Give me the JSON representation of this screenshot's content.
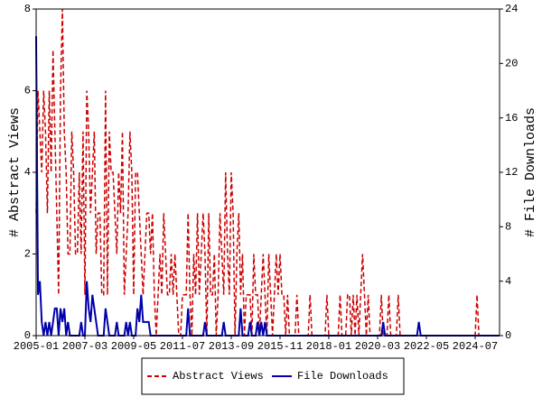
{
  "chart_data": {
    "type": "line",
    "x": [
      "2005-01",
      "2005-02",
      "2005-03",
      "2005-04",
      "2005-05",
      "2005-06",
      "2005-07",
      "2005-08",
      "2005-09",
      "2005-10",
      "2005-11",
      "2005-12",
      "2006-01",
      "2006-02",
      "2006-03",
      "2006-04",
      "2006-05",
      "2006-06",
      "2006-07",
      "2006-08",
      "2006-09",
      "2006-10",
      "2006-11",
      "2006-12",
      "2007-01",
      "2007-02",
      "2007-03",
      "2007-04",
      "2007-05",
      "2007-06",
      "2007-07",
      "2007-08",
      "2007-09",
      "2007-10",
      "2007-11",
      "2007-12",
      "2008-01",
      "2008-02",
      "2008-03",
      "2008-04",
      "2008-05",
      "2008-06",
      "2008-07",
      "2008-08",
      "2008-09",
      "2008-10",
      "2008-11",
      "2008-12",
      "2009-01",
      "2009-02",
      "2009-03",
      "2009-04",
      "2009-05",
      "2009-06",
      "2009-07",
      "2009-08",
      "2009-09",
      "2009-10",
      "2009-11",
      "2009-12",
      "2010-01",
      "2010-02",
      "2010-03",
      "2010-04",
      "2010-05",
      "2010-06",
      "2010-07",
      "2010-08",
      "2010-09",
      "2010-10",
      "2010-11",
      "2010-12",
      "2011-01",
      "2011-02",
      "2011-03",
      "2011-04",
      "2011-05",
      "2011-06",
      "2011-07",
      "2011-08",
      "2011-09",
      "2011-10",
      "2011-11",
      "2011-12",
      "2012-01",
      "2012-02",
      "2012-03",
      "2012-04",
      "2012-05",
      "2012-06",
      "2012-07",
      "2012-08",
      "2012-09",
      "2012-10",
      "2012-11",
      "2012-12",
      "2013-01",
      "2013-02",
      "2013-03",
      "2013-04",
      "2013-05",
      "2013-06",
      "2013-07",
      "2013-08",
      "2013-09",
      "2013-10",
      "2013-11",
      "2013-12",
      "2014-01",
      "2014-02",
      "2014-03",
      "2014-04",
      "2014-05",
      "2014-06",
      "2014-07",
      "2014-08",
      "2014-09",
      "2014-10",
      "2014-11",
      "2014-12",
      "2015-01",
      "2015-02",
      "2015-03",
      "2015-04",
      "2015-05",
      "2015-06",
      "2015-07",
      "2015-08",
      "2015-09",
      "2015-10",
      "2015-11",
      "2015-12",
      "2016-01",
      "2016-02",
      "2016-03",
      "2016-04",
      "2016-05",
      "2016-06",
      "2016-07",
      "2016-08",
      "2016-09",
      "2016-10",
      "2016-11",
      "2016-12",
      "2017-01",
      "2017-02",
      "2017-03",
      "2017-04",
      "2017-05",
      "2017-06",
      "2017-07",
      "2017-08",
      "2017-09",
      "2017-10",
      "2017-11",
      "2017-12",
      "2018-01",
      "2018-02",
      "2018-03",
      "2018-04",
      "2018-05",
      "2018-06",
      "2018-07",
      "2018-08",
      "2018-09",
      "2018-10",
      "2018-11",
      "2018-12",
      "2019-01",
      "2019-02",
      "2019-03",
      "2019-04",
      "2019-05",
      "2019-06",
      "2019-07",
      "2019-08",
      "2019-09",
      "2019-10",
      "2019-11",
      "2019-12",
      "2020-01",
      "2020-02",
      "2020-03",
      "2020-04",
      "2020-05",
      "2020-06",
      "2020-07",
      "2020-08",
      "2020-09",
      "2020-10",
      "2020-11",
      "2020-12",
      "2021-01",
      "2021-02",
      "2021-03",
      "2021-04",
      "2021-05",
      "2021-06",
      "2021-07",
      "2021-08",
      "2021-09",
      "2021-10",
      "2021-11",
      "2021-12",
      "2022-01",
      "2022-02",
      "2022-03",
      "2022-04",
      "2022-05",
      "2022-06",
      "2022-07",
      "2022-08",
      "2022-09",
      "2022-10",
      "2022-11",
      "2022-12",
      "2023-01",
      "2023-02",
      "2023-03",
      "2023-04",
      "2023-05",
      "2023-06",
      "2023-07",
      "2023-08",
      "2023-09",
      "2023-10",
      "2023-11",
      "2023-12",
      "2024-01",
      "2024-02",
      "2024-03",
      "2024-04",
      "2024-05",
      "2024-06",
      "2024-07",
      "2024-08",
      "2024-09",
      "2024-10",
      "2024-11",
      "2024-12",
      "2025-01",
      "2025-02",
      "2025-03",
      "2025-04",
      "2025-05",
      "2025-06",
      "2025-07",
      "2025-08"
    ],
    "xticks": [
      "2005-01",
      "2007-03",
      "2009-05",
      "2011-07",
      "2013-09",
      "2015-11",
      "2018-01",
      "2020-03",
      "2022-05",
      "2024-07"
    ],
    "ylabel": "# Abstract Views",
    "y2label": "# File Downloads",
    "ylim": [
      0,
      8
    ],
    "yticks": [
      0,
      2,
      4,
      6,
      8
    ],
    "y2lim": [
      0,
      24
    ],
    "y2ticks": [
      0,
      4,
      8,
      12,
      16,
      20,
      24
    ],
    "legend": "bottom",
    "series": [
      {
        "name": "Abstract Views",
        "color": "#cc0000",
        "dash": true,
        "values": [
          3,
          6,
          5,
          4,
          6,
          5,
          3,
          6,
          4,
          7,
          5,
          3,
          1,
          6,
          8,
          5,
          4,
          2,
          2,
          5,
          4,
          2,
          2,
          4,
          2,
          5,
          1,
          6,
          5,
          3,
          4,
          5,
          2,
          3,
          3,
          1,
          1,
          6,
          1,
          5,
          4,
          4,
          3,
          2,
          4,
          3,
          5,
          1,
          2,
          3,
          5,
          4,
          1,
          4,
          4,
          3,
          2,
          1,
          2,
          3,
          3,
          2,
          3,
          1,
          0,
          1,
          2,
          1,
          3,
          2,
          1,
          1,
          2,
          1,
          2,
          1,
          0,
          0,
          1,
          1,
          1,
          3,
          1,
          0,
          2,
          1,
          3,
          1,
          2,
          3,
          2,
          0,
          3,
          1,
          1,
          2,
          0,
          1,
          3,
          2,
          1,
          4,
          2,
          1,
          4,
          3,
          0,
          2,
          3,
          1,
          2,
          0,
          1,
          1,
          1,
          0,
          2,
          1,
          1,
          0,
          1,
          2,
          1,
          0,
          2,
          1,
          0,
          1,
          2,
          1,
          2,
          1,
          1,
          0,
          1,
          0,
          0,
          0,
          0,
          1,
          0,
          0,
          0,
          0,
          0,
          0,
          1,
          0,
          0,
          0,
          0,
          0,
          0,
          0,
          0,
          1,
          0,
          0,
          0,
          0,
          0,
          0,
          1,
          0,
          0,
          0,
          1,
          1,
          0,
          1,
          0,
          1,
          0,
          1,
          2,
          1,
          0,
          1,
          0,
          0,
          0,
          0,
          0,
          0,
          1,
          0,
          0,
          0,
          1,
          0,
          0,
          0,
          0,
          1,
          0,
          0,
          0,
          0,
          0,
          0,
          0,
          0,
          0,
          0,
          0,
          0,
          0,
          0,
          0,
          0,
          0,
          0,
          0,
          0,
          0,
          0,
          0,
          0,
          0,
          0,
          0,
          0,
          0,
          0,
          0,
          0,
          0,
          0,
          0,
          0,
          0,
          0,
          0,
          0,
          0,
          1,
          0,
          0,
          0,
          0,
          0,
          0,
          0,
          0,
          0,
          0,
          0,
          0
        ]
      },
      {
        "name": "File Downloads",
        "color": "#0000aa",
        "axis": "y2",
        "values": [
          22,
          3,
          4,
          1,
          0,
          1,
          0,
          1,
          0,
          1,
          2,
          2,
          0,
          2,
          1,
          2,
          0,
          1,
          0,
          0,
          0,
          0,
          0,
          0,
          1,
          0,
          0,
          4,
          2,
          1,
          3,
          2,
          1,
          0,
          0,
          0,
          0,
          2,
          1,
          0,
          0,
          0,
          0,
          1,
          0,
          0,
          0,
          0,
          1,
          0,
          1,
          0,
          0,
          0,
          2,
          1,
          3,
          1,
          1,
          1,
          1,
          0,
          0,
          0,
          0,
          0,
          0,
          0,
          0,
          0,
          0,
          0,
          0,
          0,
          0,
          0,
          0,
          0,
          0,
          0,
          0,
          2,
          0,
          0,
          0,
          0,
          0,
          0,
          0,
          0,
          1,
          0,
          0,
          0,
          0,
          0,
          0,
          0,
          0,
          0,
          1,
          0,
          0,
          0,
          0,
          0,
          0,
          0,
          0,
          2,
          0,
          0,
          0,
          0,
          1,
          0,
          0,
          0,
          1,
          0,
          1,
          0,
          1,
          0,
          0,
          0,
          0,
          0,
          0,
          0,
          0,
          0,
          0,
          0,
          0,
          0,
          0,
          0,
          0,
          0,
          0,
          0,
          0,
          0,
          0,
          0,
          0,
          0,
          0,
          0,
          0,
          0,
          0,
          0,
          0,
          0,
          0,
          0,
          0,
          0,
          0,
          0,
          0,
          0,
          0,
          0,
          0,
          0,
          0,
          0,
          0,
          0,
          0,
          0,
          0,
          0,
          0,
          0,
          0,
          0,
          0,
          0,
          0,
          0,
          0,
          1,
          0,
          0,
          0,
          0,
          0,
          0,
          0,
          0,
          0,
          0,
          0,
          0,
          0,
          0,
          0,
          0,
          0,
          0,
          1,
          0,
          0,
          0,
          0,
          0,
          0,
          0,
          0,
          0,
          0,
          0,
          0,
          0,
          0,
          0,
          0,
          0,
          0,
          0,
          0,
          0,
          0,
          0,
          0,
          0,
          0,
          0,
          0,
          0,
          0,
          0,
          0,
          0,
          0,
          0,
          0,
          0,
          0,
          0,
          0,
          0,
          0,
          0
        ]
      }
    ]
  }
}
